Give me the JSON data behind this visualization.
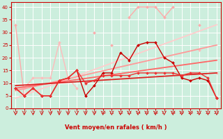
{
  "xlabel": "Vent moyen/en rafales ( km/h )",
  "background_color": "#cceedd",
  "grid_color": "#ffffff",
  "xlim": [
    -0.5,
    23.5
  ],
  "ylim": [
    0,
    42
  ],
  "yticks": [
    0,
    5,
    10,
    15,
    20,
    25,
    30,
    35,
    40
  ],
  "xticks": [
    0,
    1,
    2,
    3,
    4,
    5,
    6,
    7,
    8,
    9,
    10,
    11,
    12,
    13,
    14,
    15,
    16,
    17,
    18,
    19,
    20,
    21,
    22,
    23
  ],
  "series": [
    {
      "label": "light_pink_jagged",
      "color": "#ffaaaa",
      "linewidth": 1.0,
      "marker": "D",
      "markersize": 2.0,
      "connect_gaps": false,
      "x": [
        0,
        1,
        2,
        3,
        4,
        5,
        6,
        7,
        8,
        9,
        10,
        11,
        12,
        13,
        14,
        15,
        16,
        17,
        18,
        19,
        20,
        21,
        22,
        23
      ],
      "y": [
        33,
        5,
        null,
        null,
        null,
        null,
        null,
        null,
        null,
        30,
        null,
        25,
        null,
        36,
        40,
        40,
        40,
        36,
        40,
        null,
        null,
        33,
        null,
        null
      ]
    },
    {
      "label": "light_pink_mid",
      "color": "#ffbbbb",
      "linewidth": 1.0,
      "marker": "D",
      "markersize": 2.0,
      "connect_gaps": false,
      "x": [
        0,
        1,
        2,
        3,
        4,
        5,
        6,
        7,
        8,
        9,
        10,
        11,
        12,
        13,
        14,
        15,
        16,
        17,
        18,
        19,
        20,
        21,
        22,
        23
      ],
      "y": [
        8,
        8,
        12,
        12,
        12,
        26,
        12,
        8,
        null,
        null,
        null,
        null,
        null,
        null,
        null,
        null,
        null,
        null,
        null,
        null,
        null,
        23,
        null,
        14
      ]
    },
    {
      "label": "regression_lightest",
      "color": "#ffcccc",
      "linewidth": 1.3,
      "marker": null,
      "markersize": 0,
      "connect_gaps": true,
      "x": [
        0,
        23
      ],
      "y": [
        4,
        33
      ]
    },
    {
      "label": "regression_light",
      "color": "#ff9999",
      "linewidth": 1.3,
      "marker": null,
      "markersize": 0,
      "connect_gaps": true,
      "x": [
        0,
        23
      ],
      "y": [
        7,
        25
      ]
    },
    {
      "label": "regression_medium",
      "color": "#ff6666",
      "linewidth": 1.3,
      "marker": null,
      "markersize": 0,
      "connect_gaps": true,
      "x": [
        0,
        23
      ],
      "y": [
        8,
        19
      ]
    },
    {
      "label": "regression_dark",
      "color": "#dd2222",
      "linewidth": 1.3,
      "marker": null,
      "markersize": 0,
      "connect_gaps": true,
      "x": [
        0,
        23
      ],
      "y": [
        9,
        14
      ]
    },
    {
      "label": "dark_red_jagged",
      "color": "#cc0000",
      "linewidth": 1.0,
      "marker": "D",
      "markersize": 2.0,
      "connect_gaps": true,
      "x": [
        0,
        1,
        2,
        3,
        4,
        5,
        6,
        7,
        8,
        9,
        10,
        11,
        12,
        13,
        14,
        15,
        16,
        17,
        18,
        19,
        20,
        21,
        22,
        23
      ],
      "y": [
        8,
        5,
        8,
        5,
        5,
        11,
        12,
        15,
        5,
        9,
        14,
        14,
        22,
        19,
        25,
        26,
        26,
        20,
        18,
        12,
        11,
        12,
        11,
        4
      ]
    },
    {
      "label": "medium_red_smooth",
      "color": "#ee3333",
      "linewidth": 1.0,
      "marker": "D",
      "markersize": 2.0,
      "connect_gaps": true,
      "x": [
        0,
        1,
        2,
        3,
        4,
        5,
        6,
        7,
        8,
        9,
        10,
        11,
        12,
        13,
        14,
        15,
        16,
        17,
        18,
        19,
        20,
        21,
        22,
        23
      ],
      "y": [
        8,
        5,
        8,
        5,
        5,
        11,
        12,
        15,
        10,
        11,
        13,
        13,
        13,
        13,
        14,
        14,
        14,
        14,
        14,
        13,
        14,
        14,
        12,
        4
      ]
    }
  ],
  "wind_arrow_color": "#cc0000",
  "tick_color": "#cc0000",
  "label_fontsize": 6,
  "tick_fontsize": 4.5
}
